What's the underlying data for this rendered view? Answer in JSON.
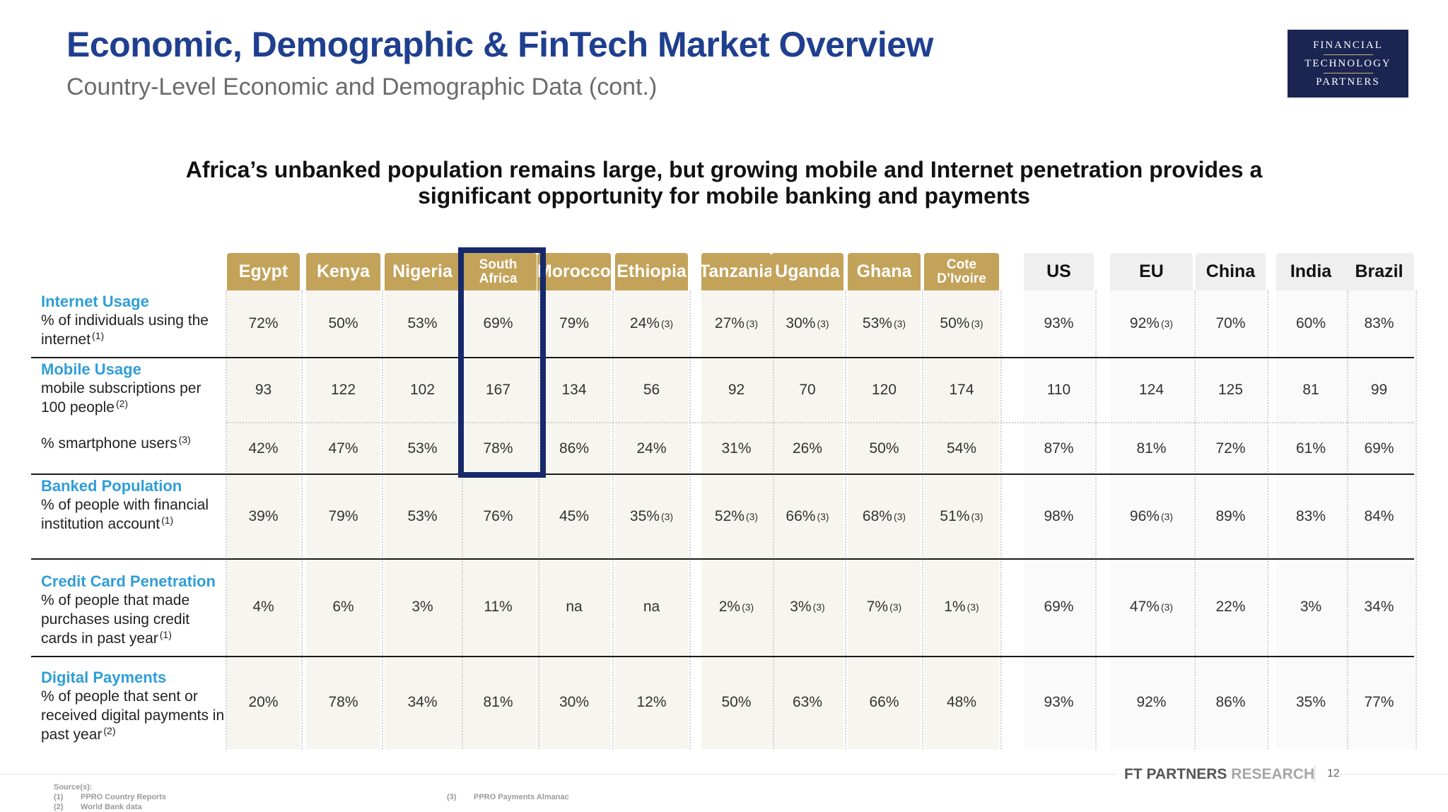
{
  "header": {
    "title": "Economic, Demographic & FinTech Market Overview",
    "subtitle": "Country-Level Economic and Demographic Data (cont.)"
  },
  "logo": {
    "line1": "FINANCIAL",
    "line2": "TECHNOLOGY",
    "line3": "PARTNERS"
  },
  "headline": {
    "line1": "Africa’s unbanked population remains large, but growing mobile and Internet penetration provides a",
    "line2": "significant opportunity for mobile banking and payments"
  },
  "columns": [
    "Egypt",
    "Kenya",
    "Nigeria",
    "South Africa",
    "Morocco",
    "Ethiopia",
    "Tanzania",
    "Uganda",
    "Ghana",
    "Cote D’Ivoire",
    "US",
    "EU",
    "China",
    "India",
    "Brazil"
  ],
  "column_lines": {
    "south_africa": [
      "South",
      "Africa"
    ],
    "cote": [
      "Cote",
      "D’Ivoire"
    ]
  },
  "rows": [
    {
      "category": "Internet Usage",
      "description": "% of individuals using the internet",
      "note": "(1)",
      "values": [
        "72%",
        "50%",
        "53%",
        "69%",
        "79%",
        "24%",
        "27%",
        "30%",
        "53%",
        "50%",
        "93%",
        "92%",
        "70%",
        "60%",
        "83%"
      ],
      "notes": [
        "",
        "",
        "",
        "",
        "",
        "(3)",
        "(3)",
        "(3)",
        "(3)",
        "(3)",
        "",
        "(3)",
        "",
        "",
        ""
      ]
    },
    {
      "category": "Mobile Usage",
      "description": "mobile subscriptions per 100 people",
      "note": "(2)",
      "values": [
        "93",
        "122",
        "102",
        "167",
        "134",
        "56",
        "92",
        "70",
        "120",
        "174",
        "110",
        "124",
        "125",
        "81",
        "99"
      ],
      "notes": [
        "",
        "",
        "",
        "",
        "",
        "",
        "",
        "",
        "",
        "",
        "",
        "",
        "",
        "",
        ""
      ]
    },
    {
      "category": "",
      "description": "% smartphone users",
      "note": "(3)",
      "values": [
        "42%",
        "47%",
        "53%",
        "78%",
        "86%",
        "24%",
        "31%",
        "26%",
        "50%",
        "54%",
        "87%",
        "81%",
        "72%",
        "61%",
        "69%"
      ],
      "notes": [
        "",
        "",
        "",
        "",
        "",
        "",
        "",
        "",
        "",
        "",
        "",
        "",
        "",
        "",
        ""
      ]
    },
    {
      "category": "Banked Population",
      "description": "% of people with financial institution account",
      "note": "(1)",
      "values": [
        "39%",
        "79%",
        "53%",
        "76%",
        "45%",
        "35%",
        "52%",
        "66%",
        "68%",
        "51%",
        "98%",
        "96%",
        "89%",
        "83%",
        "84%"
      ],
      "notes": [
        "",
        "",
        "",
        "",
        "",
        "(3)",
        "(3)",
        "(3)",
        "(3)",
        "(3)",
        "",
        "(3)",
        "",
        "",
        ""
      ]
    },
    {
      "category": "Credit Card Penetration",
      "description": "% of people that made purchases using credit cards in past year",
      "note": "(1)",
      "values": [
        "4%",
        "6%",
        "3%",
        "11%",
        "na",
        "na",
        "2%",
        "3%",
        "7%",
        "1%",
        "69%",
        "47%",
        "22%",
        "3%",
        "34%"
      ],
      "notes": [
        "",
        "",
        "",
        "",
        "",
        "",
        "(3)",
        "(3)",
        "(3)",
        "(3)",
        "",
        "(3)",
        "",
        "",
        ""
      ]
    },
    {
      "category": "Digital Payments",
      "description": "% of people that sent or received digital payments in past year",
      "note": "(2)",
      "values": [
        "20%",
        "78%",
        "34%",
        "81%",
        "30%",
        "12%",
        "50%",
        "63%",
        "66%",
        "48%",
        "93%",
        "92%",
        "86%",
        "35%",
        "77%"
      ],
      "notes": [
        "",
        "",
        "",
        "",
        "",
        "",
        "",
        "",
        "",
        "",
        "",
        "",
        "",
        "",
        ""
      ]
    }
  ],
  "footer": {
    "brand": "FT PARTNERS",
    "brand_light": "RESEARCH",
    "page": "12",
    "sources_label": "Source(s):",
    "sources": [
      {
        "num": "(1)",
        "text": "PPRO Country Reports"
      },
      {
        "num": "(2)",
        "text": "World Bank data"
      },
      {
        "num": "(3)",
        "text": "PPRO Payments Almanac"
      }
    ]
  },
  "colors": {
    "title": "#1f3f8f",
    "africa_header": "#c3a25a",
    "category": "#2f9ed8",
    "highlight": "#16296b",
    "logo_bg": "#1b2552"
  }
}
